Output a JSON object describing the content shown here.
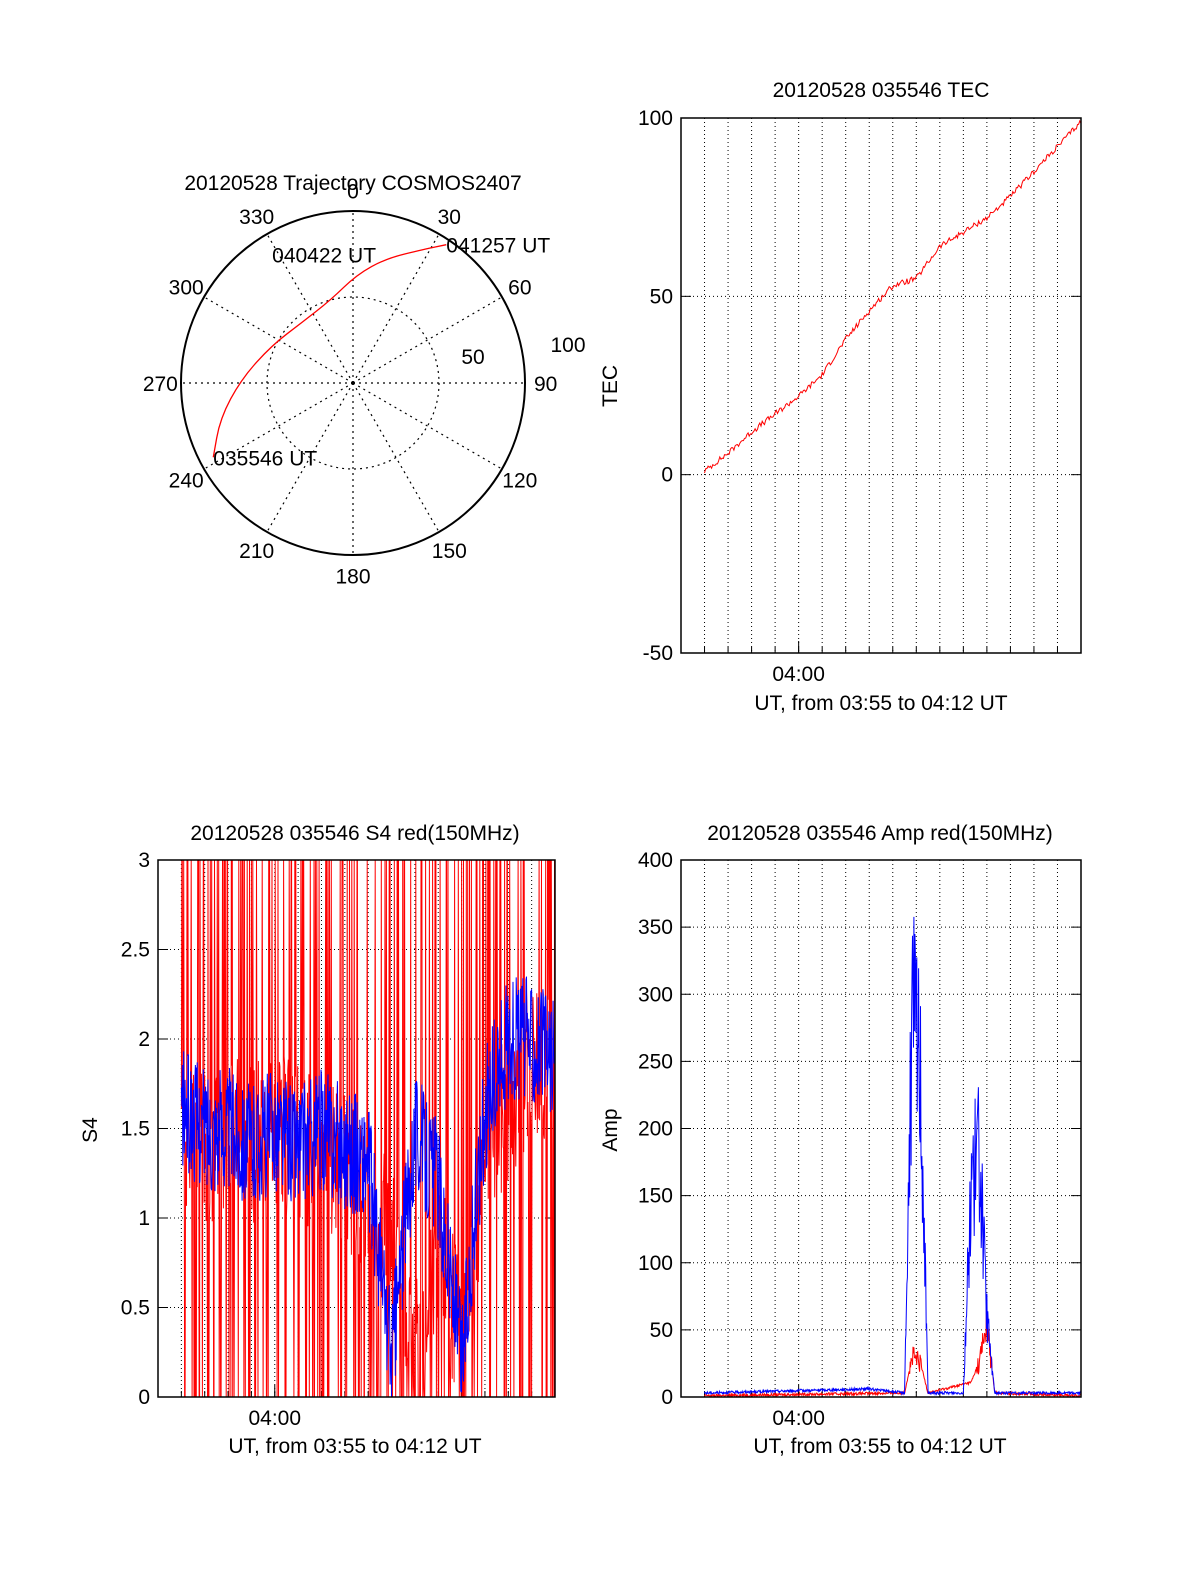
{
  "colors": {
    "red": "#ff0000",
    "blue": "#0000ff",
    "axis": "#000000",
    "grid": "#000000",
    "background": "#ffffff"
  },
  "chart_data": [
    {
      "type": "polar-trajectory",
      "title": "20120528 Trajectory COSMOS2407",
      "azimuth_labels": [
        "0",
        "30",
        "60",
        "90",
        "120",
        "150",
        "180",
        "210",
        "240",
        "270",
        "300",
        "330"
      ],
      "radius_labels": [
        "50",
        "100"
      ],
      "grid": true,
      "trajectory": {
        "color": "red",
        "points": [
          {
            "az": 242,
            "r": 92
          },
          {
            "az": 255,
            "r": 80
          },
          {
            "az": 272,
            "r": 65
          },
          {
            "az": 295,
            "r": 52
          },
          {
            "az": 320,
            "r": 46
          },
          {
            "az": 345,
            "r": 50
          },
          {
            "az": 2,
            "r": 63
          },
          {
            "az": 15,
            "r": 75
          },
          {
            "az": 28,
            "r": 88
          },
          {
            "az": 34,
            "r": 97
          }
        ]
      },
      "annotations": [
        {
          "text": "035546 UT",
          "az": 242,
          "r": 92
        },
        {
          "text": "040422 UT",
          "az": 320,
          "r": 46
        },
        {
          "text": "041257 UT",
          "az": 34,
          "r": 97
        }
      ]
    },
    {
      "type": "line",
      "title": "20120528 035546 TEC",
      "xlabel": "UT, from 03:55 to 04:12 UT",
      "ylabel": "TEC",
      "xlim": [
        "03:55",
        "04:12"
      ],
      "ylim": [
        -50,
        100
      ],
      "yticks": [
        -50,
        0,
        50,
        100
      ],
      "xtick_labels": [
        "04:00"
      ],
      "grid": true,
      "series": [
        {
          "color": "red",
          "x": [
            "03:56",
            "03:57",
            "03:58",
            "03:59",
            "04:00",
            "04:01",
            "04:02",
            "04:03",
            "04:04",
            "04:05",
            "04:06",
            "04:07",
            "04:08",
            "04:09",
            "04:10",
            "04:11",
            "04:12"
          ],
          "values": [
            1,
            6,
            12,
            17,
            22,
            28,
            38,
            46,
            53,
            55,
            64,
            68,
            72,
            78,
            85,
            92,
            99
          ]
        }
      ]
    },
    {
      "type": "line",
      "title": "20120528 035546 S4 red(150MHz)",
      "xlabel": "UT, from 03:55 to 04:12 UT",
      "ylabel": "S4",
      "xlim": [
        "03:55",
        "04:12"
      ],
      "ylim": [
        0,
        3
      ],
      "yticks": [
        0,
        0.5,
        1,
        1.5,
        2,
        2.5,
        3
      ],
      "xtick_labels": [
        "04:00"
      ],
      "grid": true,
      "series": [
        {
          "color": "red",
          "x": [
            "03:56",
            "03:57",
            "03:58",
            "03:59",
            "04:00",
            "04:01",
            "04:02",
            "04:03",
            "04:04",
            "04:05",
            "04:06",
            "04:07",
            "04:08",
            "04:09",
            "04:10",
            "04:11",
            "04:12"
          ],
          "values": [
            1.5,
            1.4,
            1.5,
            1.4,
            1.5,
            1.4,
            1.4,
            1.3,
            1.1,
            0.9,
            0.2,
            0.9,
            0.3,
            1.4,
            1.6,
            1.9,
            1.8
          ]
        },
        {
          "color": "blue",
          "x": [
            "03:56",
            "03:57",
            "03:58",
            "03:59",
            "04:00",
            "04:01",
            "04:02",
            "04:03",
            "04:04",
            "04:05",
            "04:06",
            "04:07",
            "04:08",
            "04:09",
            "04:10",
            "04:11",
            "04:12"
          ],
          "values": [
            1.6,
            1.5,
            1.5,
            1.4,
            1.5,
            1.4,
            1.5,
            1.4,
            1.3,
            0.2,
            1.5,
            1.2,
            0.2,
            1.6,
            2.0,
            2.0,
            1.9
          ]
        }
      ]
    },
    {
      "type": "line",
      "title": "20120528 035546 Amp red(150MHz)",
      "xlabel": "UT, from 03:55 to 04:12 UT",
      "ylabel": "Amp",
      "xlim": [
        "03:55",
        "04:12"
      ],
      "ylim": [
        0,
        400
      ],
      "yticks": [
        0,
        50,
        100,
        150,
        200,
        250,
        300,
        350,
        400
      ],
      "xtick_labels": [
        "04:00"
      ],
      "grid": true,
      "series": [
        {
          "color": "red",
          "x": [
            "03:56",
            "04:04:30",
            "04:04:50",
            "04:05:10",
            "04:05:30",
            "04:07:20",
            "04:07:40",
            "04:08:00",
            "04:08:20",
            "04:12"
          ],
          "values": [
            0,
            2,
            30,
            25,
            2,
            10,
            25,
            55,
            2,
            0
          ]
        },
        {
          "color": "blue",
          "x": [
            "03:56",
            "04:03",
            "04:04:30",
            "04:04:50",
            "04:05:10",
            "04:05:30",
            "04:07:00",
            "04:07:20",
            "04:07:40",
            "04:08:00",
            "04:08:20",
            "04:12"
          ],
          "values": [
            2,
            5,
            2,
            290,
            250,
            2,
            2,
            160,
            185,
            60,
            2,
            2
          ]
        }
      ]
    }
  ]
}
